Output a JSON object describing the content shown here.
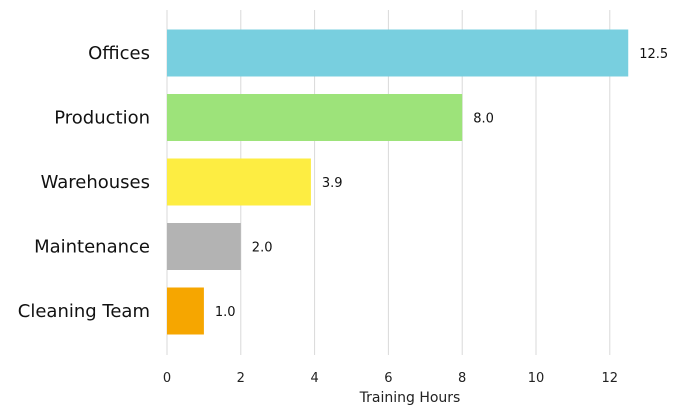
{
  "chart_data": {
    "type": "bar",
    "orientation": "horizontal",
    "categories": [
      "Offices",
      "Production",
      "Warehouses",
      "Maintenance",
      "Cleaning Team"
    ],
    "values": [
      12.5,
      8.0,
      3.9,
      2.0,
      1.0
    ],
    "value_labels": [
      "12.5",
      "8.0",
      "3.9",
      "2.0",
      "1.0"
    ],
    "colors": [
      "#78cfdf",
      "#9de37a",
      "#fded42",
      "#b3b3b3",
      "#f6a600"
    ],
    "title": "",
    "xlabel": "Training Hours",
    "ylabel": "",
    "xlim": [
      0,
      12.9
    ],
    "xticks": [
      0,
      2,
      4,
      6,
      8,
      10,
      12
    ],
    "xtick_labels": [
      "0",
      "2",
      "4",
      "6",
      "8",
      "10",
      "12"
    ],
    "grid": "vertical"
  }
}
